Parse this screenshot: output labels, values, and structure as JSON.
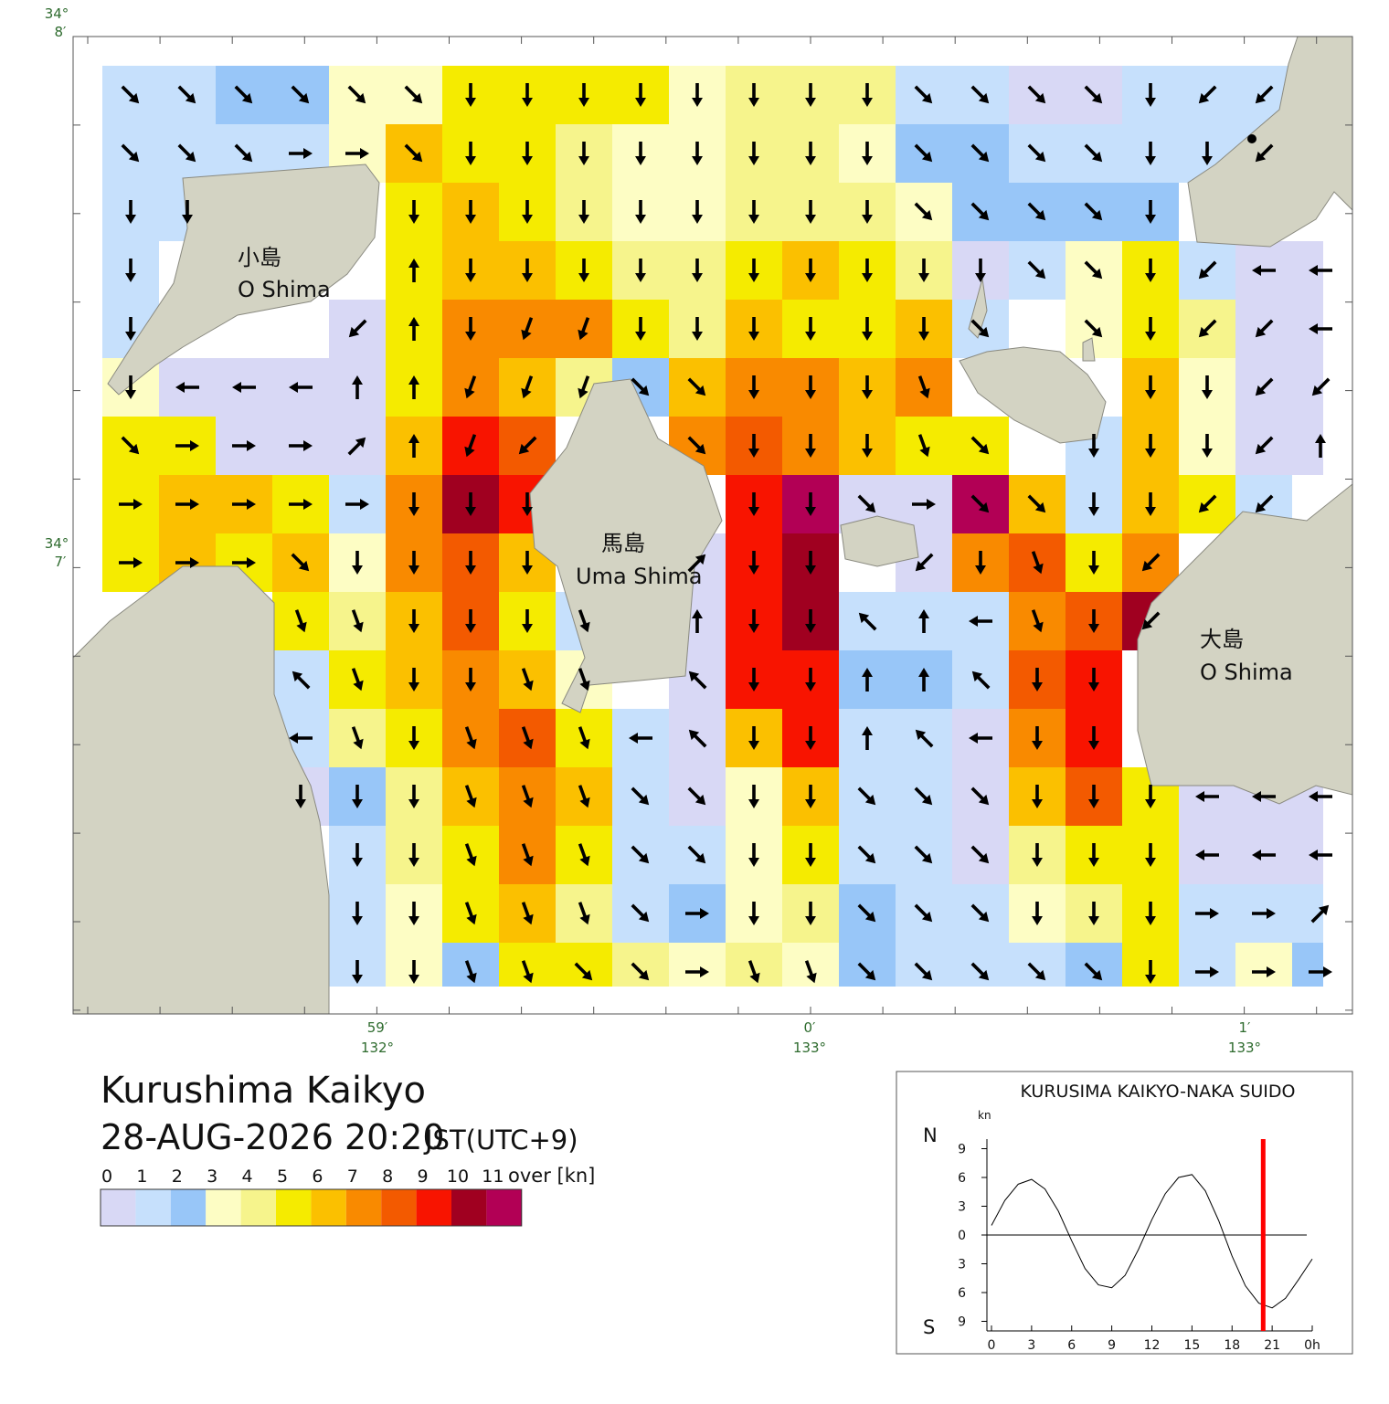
{
  "map": {
    "title": "Kurushima Kaikyo",
    "datetime": "28-AUG-2026 20:20",
    "timezone": "JST(UTC+9)",
    "speed": [
      [
        1.5,
        1.5,
        2.5,
        2.5,
        3.5,
        3.5,
        5.5,
        5.5,
        5.5,
        5.5,
        3.5,
        4.5,
        4.5,
        4.5,
        1.5,
        1.5,
        0.5,
        0.5,
        1.5,
        1.5,
        1.5,
        null
      ],
      [
        1.5,
        1.5,
        1.5,
        1.5,
        3.5,
        6.5,
        5.5,
        5.5,
        4.5,
        3.5,
        3.5,
        4.5,
        4.5,
        3.5,
        2.5,
        2.5,
        1.5,
        1.5,
        1.5,
        1.5,
        1.5,
        null
      ],
      [
        1.5,
        1.5,
        null,
        null,
        null,
        5.5,
        6.5,
        5.5,
        4.5,
        3.5,
        3.5,
        4.5,
        4.5,
        4.5,
        3.5,
        2.5,
        2.5,
        2.5,
        2.5,
        null,
        null,
        null
      ],
      [
        1.5,
        null,
        null,
        null,
        null,
        5.5,
        6.5,
        6.5,
        5.5,
        4.5,
        4.5,
        5.5,
        6.5,
        5.5,
        4.5,
        0.5,
        1.5,
        3.5,
        5.5,
        1.5,
        0.5,
        0.5
      ],
      [
        1.5,
        null,
        null,
        null,
        0.5,
        5.5,
        7.5,
        7.5,
        7.5,
        5.5,
        4.5,
        6.5,
        5.5,
        5.5,
        6.5,
        1.5,
        null,
        3.5,
        5.5,
        4.5,
        0.5,
        0.5
      ],
      [
        3.5,
        0.5,
        0.5,
        0.5,
        0.5,
        5.5,
        7.5,
        6.5,
        4.5,
        2.5,
        6.5,
        7.5,
        7.5,
        6.5,
        7.5,
        null,
        null,
        null,
        6.5,
        3.5,
        0.5,
        0.5
      ],
      [
        5.5,
        5.5,
        0.5,
        0.5,
        0.5,
        6.5,
        9.5,
        8.5,
        null,
        null,
        7.5,
        8.5,
        7.5,
        6.5,
        5.5,
        5.5,
        null,
        1.5,
        6.5,
        3.5,
        0.5,
        0.5
      ],
      [
        5.5,
        6.5,
        6.5,
        5.5,
        1.5,
        7.5,
        10.5,
        9.5,
        null,
        null,
        null,
        9.5,
        11.5,
        0.5,
        0.5,
        11.5,
        6.5,
        1.5,
        6.5,
        5.5,
        1.5,
        null
      ],
      [
        5.5,
        6.5,
        5.5,
        6.5,
        3.5,
        7.5,
        8.5,
        6.5,
        null,
        null,
        0.5,
        9.5,
        10.5,
        null,
        0.5,
        7.5,
        8.5,
        5.5,
        7.5,
        null,
        null,
        null
      ],
      [
        null,
        null,
        null,
        5.5,
        4.5,
        6.5,
        8.5,
        5.5,
        1.5,
        null,
        0.5,
        9.5,
        10.5,
        1.5,
        1.5,
        1.5,
        7.5,
        8.5,
        10.5,
        null,
        null,
        null
      ],
      [
        null,
        null,
        null,
        1.5,
        5.5,
        6.5,
        7.5,
        6.5,
        3.5,
        null,
        0.5,
        9.5,
        9.5,
        2.5,
        2.5,
        1.5,
        8.5,
        9.5,
        null,
        null,
        null,
        null
      ],
      [
        null,
        null,
        null,
        1.5,
        4.5,
        5.5,
        7.5,
        8.5,
        5.5,
        1.5,
        0.5,
        6.5,
        9.5,
        1.5,
        1.5,
        0.5,
        7.5,
        9.5,
        null,
        null,
        null,
        null
      ],
      [
        null,
        null,
        null,
        0.5,
        2.5,
        4.5,
        6.5,
        7.5,
        6.5,
        1.5,
        0.5,
        3.5,
        6.5,
        1.5,
        1.5,
        0.5,
        6.5,
        8.5,
        5.5,
        0.5,
        0.5,
        0.5
      ],
      [
        null,
        null,
        null,
        null,
        1.5,
        4.5,
        5.5,
        7.5,
        5.5,
        1.5,
        1.5,
        3.5,
        5.5,
        1.5,
        1.5,
        0.5,
        4.5,
        5.5,
        5.5,
        0.5,
        0.5,
        0.5
      ],
      [
        null,
        null,
        null,
        null,
        1.5,
        3.5,
        5.5,
        6.5,
        4.5,
        1.5,
        2.5,
        3.5,
        4.5,
        2.5,
        1.5,
        1.5,
        3.5,
        4.5,
        5.5,
        1.5,
        1.5,
        1.5
      ],
      [
        null,
        null,
        null,
        null,
        1.5,
        3.5,
        2.5,
        5.5,
        5.5,
        4.5,
        3.5,
        4.5,
        3.5,
        2.5,
        1.5,
        1.5,
        1.5,
        2.5,
        5.5,
        1.5,
        3.5,
        2.5
      ]
    ],
    "direction": [
      [
        135,
        135,
        135,
        135,
        135,
        135,
        180,
        180,
        180,
        180,
        180,
        180,
        180,
        180,
        135,
        135,
        135,
        135,
        180,
        225,
        225,
        null
      ],
      [
        135,
        135,
        135,
        90,
        90,
        135,
        180,
        180,
        180,
        180,
        180,
        180,
        180,
        180,
        135,
        135,
        135,
        135,
        180,
        180,
        225,
        null
      ],
      [
        180,
        180,
        null,
        null,
        null,
        180,
        180,
        180,
        180,
        180,
        180,
        180,
        180,
        180,
        135,
        135,
        135,
        135,
        180,
        null,
        null,
        null
      ],
      [
        180,
        null,
        null,
        null,
        null,
        0,
        180,
        180,
        180,
        180,
        180,
        180,
        180,
        180,
        180,
        180,
        135,
        135,
        180,
        225,
        270,
        270
      ],
      [
        180,
        null,
        null,
        null,
        225,
        0,
        180,
        200,
        200,
        180,
        180,
        180,
        180,
        180,
        180,
        135,
        null,
        135,
        180,
        225,
        225,
        270
      ],
      [
        180,
        270,
        270,
        270,
        0,
        0,
        200,
        200,
        200,
        135,
        135,
        180,
        180,
        180,
        160,
        null,
        null,
        null,
        180,
        180,
        225,
        225
      ],
      [
        135,
        90,
        90,
        90,
        45,
        0,
        200,
        225,
        null,
        null,
        135,
        180,
        180,
        180,
        160,
        135,
        null,
        180,
        180,
        180,
        225,
        0
      ],
      [
        90,
        90,
        90,
        90,
        90,
        180,
        180,
        180,
        null,
        null,
        null,
        180,
        180,
        135,
        90,
        135,
        135,
        180,
        180,
        225,
        225,
        null
      ],
      [
        90,
        90,
        90,
        135,
        180,
        180,
        180,
        180,
        null,
        null,
        45,
        180,
        180,
        null,
        225,
        180,
        160,
        180,
        225,
        null,
        null,
        null
      ],
      [
        null,
        null,
        null,
        160,
        160,
        180,
        180,
        180,
        160,
        null,
        0,
        180,
        180,
        315,
        0,
        270,
        160,
        180,
        225,
        null,
        null,
        null
      ],
      [
        null,
        null,
        null,
        315,
        160,
        180,
        180,
        160,
        160,
        null,
        315,
        180,
        180,
        0,
        0,
        315,
        180,
        180,
        null,
        null,
        null,
        null
      ],
      [
        null,
        null,
        null,
        270,
        160,
        180,
        160,
        160,
        160,
        270,
        315,
        180,
        180,
        0,
        315,
        270,
        180,
        180,
        null,
        null,
        null,
        null
      ],
      [
        null,
        null,
        null,
        180,
        180,
        180,
        160,
        160,
        160,
        135,
        135,
        180,
        180,
        135,
        135,
        135,
        180,
        180,
        180,
        270,
        270,
        270
      ],
      [
        null,
        null,
        null,
        null,
        180,
        180,
        160,
        160,
        160,
        135,
        135,
        180,
        180,
        135,
        135,
        135,
        180,
        180,
        180,
        270,
        270,
        270
      ],
      [
        null,
        null,
        null,
        null,
        180,
        180,
        160,
        160,
        160,
        135,
        90,
        180,
        180,
        135,
        135,
        135,
        180,
        180,
        180,
        90,
        90,
        45
      ],
      [
        null,
        null,
        null,
        null,
        180,
        180,
        160,
        160,
        135,
        135,
        90,
        160,
        160,
        135,
        135,
        135,
        135,
        135,
        180,
        90,
        90,
        90
      ]
    ],
    "scale": {
      "colors": [
        "#d8d8f5",
        "#c6e0fc",
        "#98c6f8",
        "#fdfdc4",
        "#f6f48c",
        "#f5eb00",
        "#fbc000",
        "#f98a00",
        "#f35a00",
        "#f81400",
        "#a00020",
        "#b20055"
      ],
      "ticks": [
        0,
        1,
        2,
        3,
        4,
        5,
        6,
        7,
        8,
        9,
        10,
        11
      ],
      "unit_label": "over [kn]"
    },
    "places": [
      {
        "name": "小島",
        "romaji": "O Shima"
      },
      {
        "name": "馬島",
        "romaji": "Uma Shima"
      },
      {
        "name": "大島",
        "romaji": "O Shima"
      }
    ],
    "lat_labels": [
      {
        "deg": "34°",
        "min": "8′"
      },
      {
        "deg": "34°",
        "min": "7′"
      }
    ],
    "lon_labels": [
      {
        "min": "59′",
        "deg": "132°"
      },
      {
        "min": "0′",
        "deg": "133°"
      },
      {
        "min": "1′",
        "deg": "133°"
      }
    ]
  },
  "chart_data": {
    "type": "line",
    "title": "KURUSIMA KAIKYO-NAKA SUIDO",
    "y_unit": "kn",
    "north": "N",
    "south": "S",
    "color": "#000000",
    "x": [
      0,
      1,
      2,
      3,
      4,
      5,
      6,
      7,
      8,
      9,
      10,
      11,
      12,
      13,
      14,
      15,
      16,
      17,
      18,
      19,
      20,
      21,
      22,
      23,
      24
    ],
    "values": [
      1.0,
      3.6,
      5.3,
      5.8,
      4.8,
      2.5,
      -0.6,
      -3.5,
      -5.2,
      -5.5,
      -4.2,
      -1.5,
      1.6,
      4.3,
      6.0,
      6.3,
      4.6,
      1.5,
      -2.2,
      -5.3,
      -7.1,
      -7.6,
      -6.6,
      -4.6,
      -2.5
    ],
    "xlim": [
      0,
      24
    ],
    "ylim": [
      -10,
      10
    ],
    "xticks": [
      0,
      3,
      6,
      9,
      12,
      15,
      18,
      21,
      {
        "value": 24,
        "label": "0h"
      }
    ],
    "yticks": [
      9,
      6,
      3,
      0,
      {
        "value": -3,
        "label": "3"
      },
      {
        "value": -6,
        "label": "6"
      },
      {
        "value": -9,
        "label": "9"
      }
    ],
    "current_time": 20.33,
    "current_color": "#ff0000"
  }
}
